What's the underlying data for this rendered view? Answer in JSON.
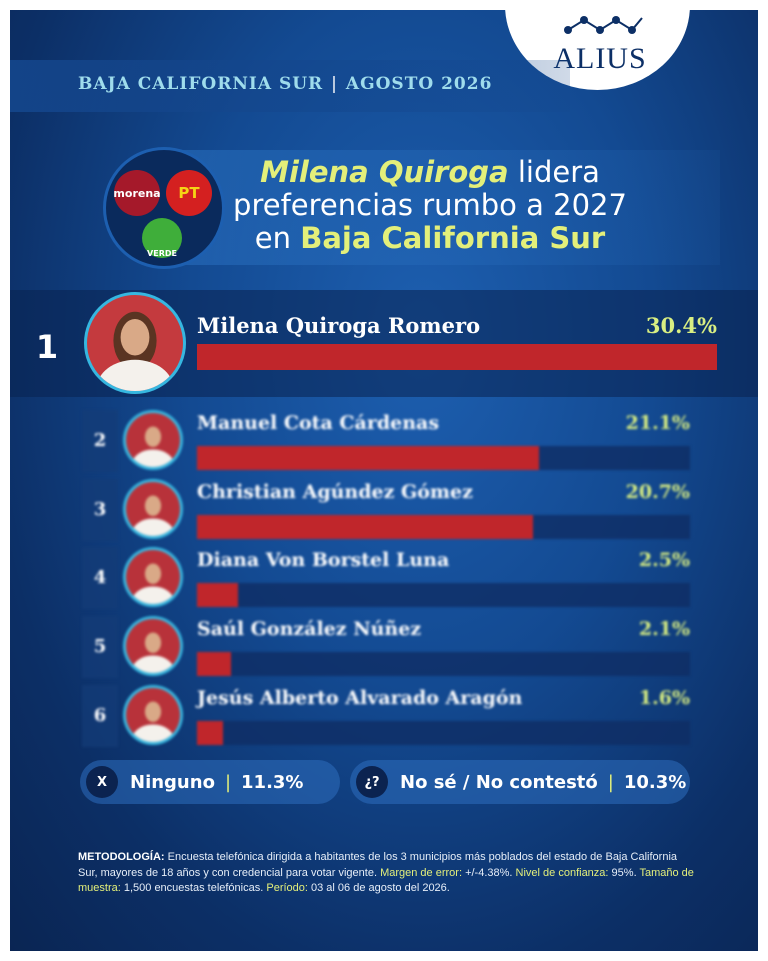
{
  "brand": "ALIUS",
  "header": {
    "region": "BAJA CALIFORNIA SUR",
    "date": "AGOSTO 2026"
  },
  "parties": [
    "morena",
    "PT",
    "VERDE"
  ],
  "chart_data": {
    "type": "bar",
    "title": [
      "Milena Quiroga",
      "lidera",
      "preferencias rumbo a 2027",
      "en",
      "Baja California Sur"
    ],
    "ranks": [
      "1",
      "2",
      "3",
      "4",
      "5",
      "6"
    ],
    "categories": [
      "Milena Quiroga Romero",
      "Manuel Cota Cárdenas",
      "Christian Agúndez Gómez",
      "Diana Von Borstel Luna",
      "Saúl González Núñez",
      "Jesús Alberto Alvarado Aragón"
    ],
    "values": [
      30.4,
      21.1,
      20.7,
      2.5,
      2.1,
      1.6
    ],
    "value_labels": [
      "30.4%",
      "21.1%",
      "20.7%",
      "2.5%",
      "2.1%",
      "1.6%"
    ],
    "color": "#c0262b"
  },
  "other_answers": [
    {
      "icon": "X",
      "name": "Ninguno",
      "value_label": "11.3%"
    },
    {
      "icon": "¿?",
      "name": "No sé / No contestó",
      "value_label": "10.3%"
    }
  ],
  "methodology": [
    {
      "label": "METODOLOGÍA:",
      "text": "Encuesta telefónica dirigida a habitantes de los 3 municipios más poblados del estado de Baja California Sur, mayores de 18 años y con credencial para votar vigente."
    },
    {
      "label": "Margen de error:",
      "text": "+/-4.38%."
    },
    {
      "label": "Nivel de confianza:",
      "text": "95%."
    },
    {
      "label": "Tamaño de muestra:",
      "text": "1,500 encuestas telefónicas."
    },
    {
      "label": "Período:",
      "text": "03 al 06 de agosto del 2026."
    }
  ]
}
